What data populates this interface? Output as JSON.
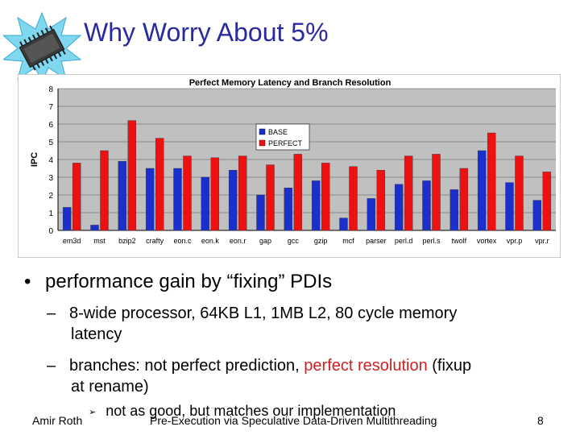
{
  "slide": {
    "title": "Why Worry About 5%",
    "bullet": "performance gain by “fixing” PDIs",
    "sub1_line1": "8-wide processor, 64KB L1, 1MB L2, 80 cycle memory",
    "sub1_line2": "latency",
    "sub2_part1": "branches: not perfect prediction, ",
    "sub2_highlight": "perfect resolution",
    "sub2_part2": " (fixup",
    "sub2_line2": "at rename)",
    "subsub": "not as good, but matches our implementation",
    "bullet_glyph": "•",
    "dash_glyph": "–",
    "arrow_glyph": "➢"
  },
  "footer": {
    "author": "Amir Roth",
    "center": "Pre-Execution via Speculative Data-Driven Multithreading",
    "page": "8"
  },
  "colors": {
    "title": "#2a2aa0",
    "base": "#1b2fcc",
    "perfect": "#ee1111",
    "plot_bg": "#c0c0c0",
    "highlight": "#cc2222"
  },
  "chart_data": {
    "type": "bar",
    "title": "Perfect Memory Latency and Branch Resolution",
    "xlabel": "",
    "ylabel": "IPC",
    "ylim": [
      0,
      8
    ],
    "yticks": [
      "0",
      "1",
      "2",
      "3",
      "4",
      "5",
      "6",
      "7",
      "8"
    ],
    "grid": true,
    "legend_position": "top-center",
    "categories": [
      "em3d",
      "mst",
      "bzip2",
      "crafty",
      "eon.c",
      "eon.k",
      "eon.r",
      "gap",
      "gcc",
      "gzip",
      "mcf",
      "parser",
      "perl.d",
      "perl.s",
      "twolf",
      "vortex",
      "vpr.p",
      "vpr.r"
    ],
    "series": [
      {
        "name": "BASE",
        "values": [
          1.3,
          0.3,
          3.9,
          3.5,
          3.5,
          3.0,
          3.4,
          2.0,
          2.4,
          2.8,
          0.7,
          1.8,
          2.6,
          2.8,
          2.3,
          4.5,
          2.7,
          1.7
        ]
      },
      {
        "name": "PERFECT",
        "values": [
          3.8,
          4.5,
          6.2,
          5.2,
          4.2,
          4.1,
          4.2,
          3.7,
          4.3,
          3.8,
          3.6,
          3.4,
          4.2,
          4.3,
          3.5,
          5.5,
          4.2,
          3.3
        ]
      }
    ]
  }
}
